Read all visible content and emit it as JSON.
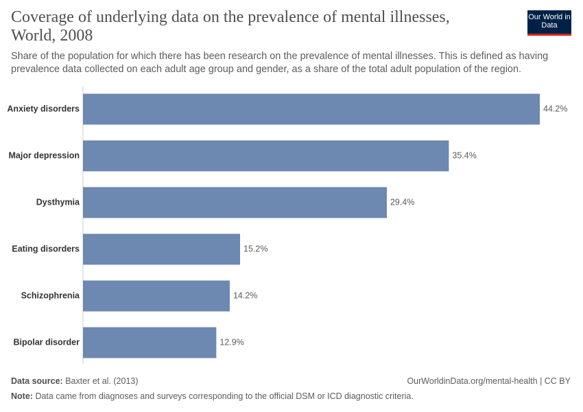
{
  "logo": "Our World in Data",
  "chart_data": {
    "type": "bar",
    "orientation": "horizontal",
    "title": "Coverage of underlying data on the prevalence of mental illnesses, World, 2008",
    "subtitle": "Share of the population for which there has been research on the prevalence of mental illnesses. This is defined as having prevalence data collected on each adult age group and gender, as a share of the total adult population of the region.",
    "categories": [
      "Anxiety disorders",
      "Major depression",
      "Dysthymia",
      "Eating disorders",
      "Schizophrenia",
      "Bipolar disorder"
    ],
    "values": [
      44.2,
      35.4,
      29.4,
      15.2,
      14.2,
      12.9
    ],
    "value_labels": [
      "44.2%",
      "35.4%",
      "29.4%",
      "15.2%",
      "14.2%",
      "12.9%"
    ],
    "color": "#6d88b1"
  },
  "footer": {
    "source_label": "Data source:",
    "source": "Baxter et al. (2013)",
    "url": "OurWorldinData.org/mental-health | CC BY",
    "note_label": "Note:",
    "note": "Data came from diagnoses and surveys corresponding to the official DSM or ICD diagnostic criteria."
  }
}
